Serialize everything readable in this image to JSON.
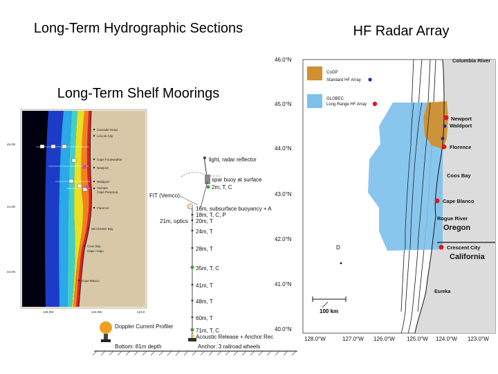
{
  "titles": {
    "hydro": "Long-Term Hydrographic Sections",
    "moorings": "Long-Term Shelf Moorings",
    "radar": "HF Radar Array"
  },
  "hydro_map": {
    "places": [
      "Cascade Head",
      "Lincoln City",
      "Cape Foulweather",
      "Newport",
      "Waldport",
      "Yachats",
      "Cape Perpetua",
      "Florence",
      "Winchester Bay",
      "Coos Bay",
      "Cape Arago",
      "Cape Blanco"
    ],
    "lat_labels": [
      "45.0N",
      "44.0N",
      "43.0N"
    ],
    "lon_labels": [
      "125.0W",
      "124.0W",
      "123.0"
    ]
  },
  "mooring": {
    "top_items": [
      "light, radar reflector",
      "spar buoy at surface",
      "2m, T, C"
    ],
    "fit": "FIT (Vemco)",
    "subsurface": "16m, subsurface buoyancy + A",
    "labels": [
      "18m, T, C, P",
      "21m, optics",
      "20m, T",
      "24m, T",
      "28m, T",
      "35m, T, C",
      "41m, T",
      "48m, T",
      "60m, T",
      "71m, T, C"
    ],
    "doppler": "Doppler Current Profiler",
    "release": "Acoustic Release + Anchor Rec",
    "bottom": "Bottom: 81m depth",
    "anchor": "Anchor: 3 railroad wheels"
  },
  "radar_map": {
    "lat_labels": [
      "46.0°N",
      "45.0°N",
      "44.0°N",
      "43.0°N",
      "42.0°N",
      "41.0°N",
      "40.0°N"
    ],
    "lon_labels": [
      "128.0°W",
      "127.0°W",
      "126.0°W",
      "125.0°W",
      "124.0°W",
      "123.0°W"
    ],
    "legend": [
      {
        "line1": "CoOP",
        "line2": "Standard HF Array",
        "color": "#d09030"
      },
      {
        "line1": "GLOBEC",
        "line2": "Long Range HF Array",
        "color": "#7cc0ec"
      }
    ],
    "places": [
      "Columbia River",
      "Newport",
      "Waldport",
      "Florence",
      "Coos Bay",
      "Cape Blanco",
      "Rogue River",
      "Oregon",
      "Crescent City",
      "California",
      "Eureka"
    ],
    "scale": "100 km",
    "marker_d": "D"
  },
  "colors": {
    "coop": "#d09030",
    "globec": "#7cc0ec",
    "land": "#dcdcdc",
    "red_site": "#e01818",
    "blue_site": "#1830b0"
  }
}
